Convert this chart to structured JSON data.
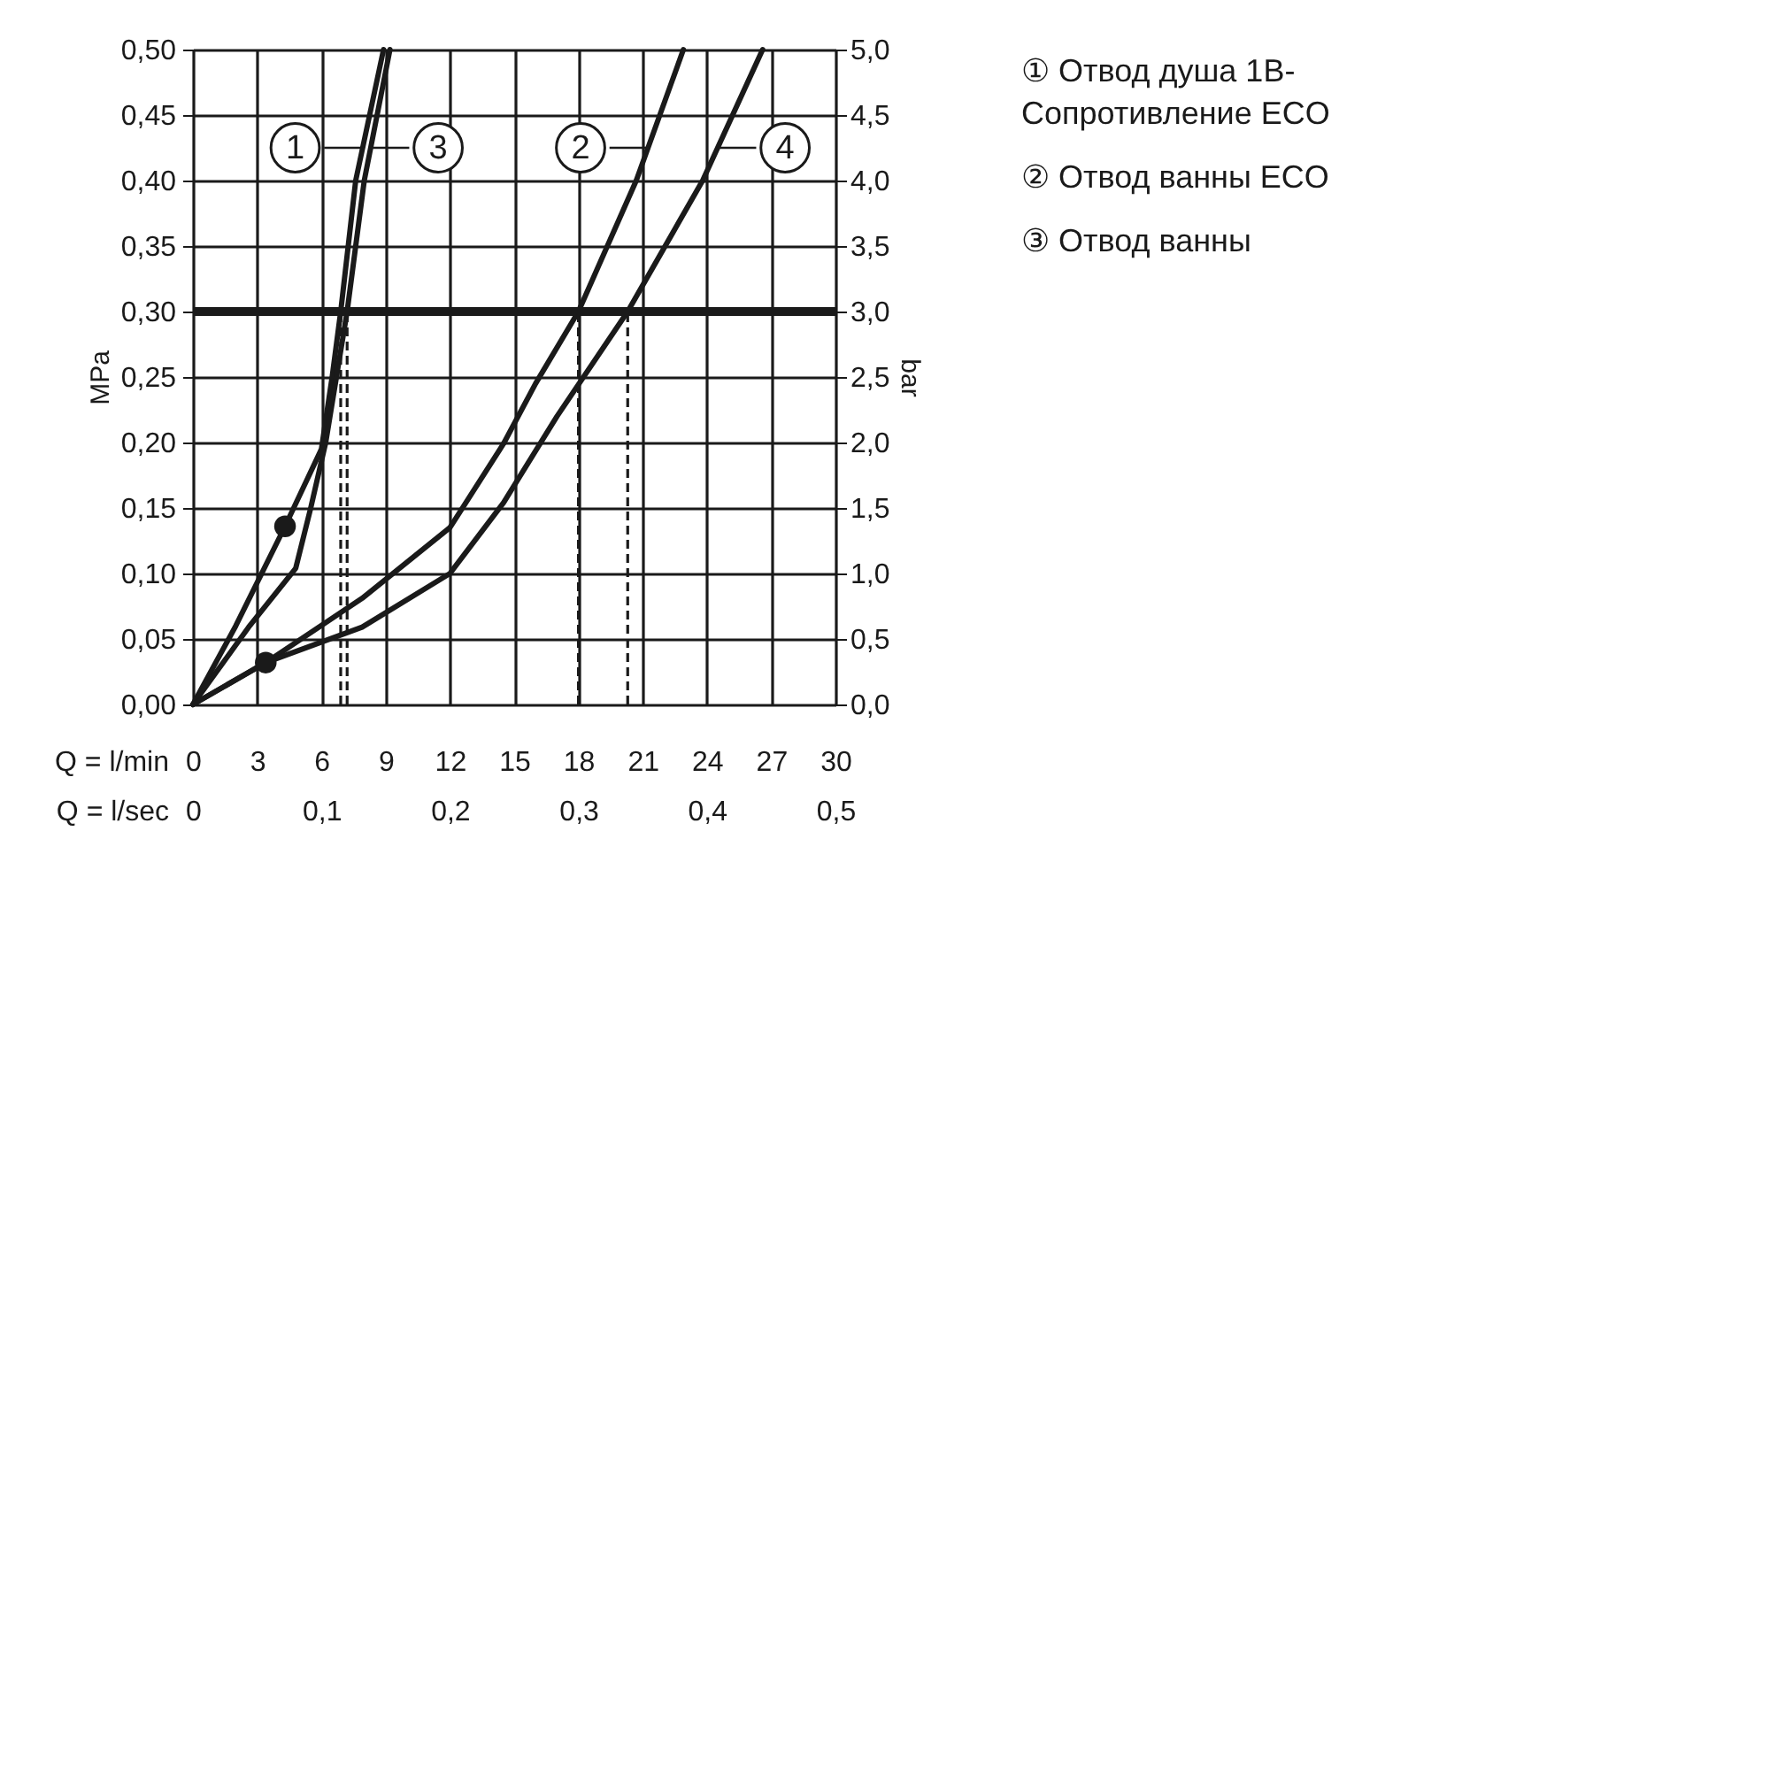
{
  "chart_data": {
    "type": "line",
    "xlabel": "Q = l/min",
    "x2label": "Q = l/sec",
    "ylabel": "MPa",
    "y2label": "bar",
    "xlim": [
      0,
      30
    ],
    "xticks": [
      0,
      3,
      6,
      9,
      12,
      15,
      18,
      21,
      24,
      27,
      30
    ],
    "x2lim": [
      0,
      0.5
    ],
    "x2ticks": [
      {
        "value": 0,
        "label": "0"
      },
      {
        "value": 0.1,
        "label": "0,1"
      },
      {
        "value": 0.2,
        "label": "0,2"
      },
      {
        "value": 0.3,
        "label": "0,3"
      },
      {
        "value": 0.4,
        "label": "0,4"
      },
      {
        "value": 0.5,
        "label": "0,5"
      }
    ],
    "ylim": [
      0,
      0.5
    ],
    "yticks": [
      {
        "value": 0,
        "label": "0,00"
      },
      {
        "value": 0.05,
        "label": "0,05"
      },
      {
        "value": 0.1,
        "label": "0,10"
      },
      {
        "value": 0.15,
        "label": "0,15"
      },
      {
        "value": 0.2,
        "label": "0,20"
      },
      {
        "value": 0.25,
        "label": "0,25"
      },
      {
        "value": 0.3,
        "label": "0,30"
      },
      {
        "value": 0.35,
        "label": "0,35"
      },
      {
        "value": 0.4,
        "label": "0,40"
      },
      {
        "value": 0.45,
        "label": "0,45"
      },
      {
        "value": 0.5,
        "label": "0,50"
      }
    ],
    "y2lim": [
      0,
      5
    ],
    "y2ticks": [
      {
        "value": 0,
        "label": "0,0"
      },
      {
        "value": 0.5,
        "label": "0,5"
      },
      {
        "value": 1,
        "label": "1,0"
      },
      {
        "value": 1.5,
        "label": "1,5"
      },
      {
        "value": 2,
        "label": "2,0"
      },
      {
        "value": 2.5,
        "label": "2,5"
      },
      {
        "value": 3,
        "label": "3,0"
      },
      {
        "value": 3.5,
        "label": "3,5"
      },
      {
        "value": 4,
        "label": "4,0"
      },
      {
        "value": 4.5,
        "label": "4,5"
      },
      {
        "value": 5,
        "label": "5,0"
      }
    ],
    "grid": true,
    "legend": "top",
    "line_style": "solid",
    "marker": "none",
    "series": [
      {
        "name": "1",
        "color": "#1a1a1a",
        "x": [
          0,
          2,
          4.3,
          6.0,
          6.5,
          6.9,
          7.6,
          8.9
        ],
        "values": [
          0,
          0.06,
          0.136,
          0.195,
          0.25,
          0.3,
          0.4,
          0.5
        ]
      },
      {
        "name": "3",
        "color": "#1a1a1a",
        "x": [
          0,
          2.6,
          4.8,
          5.5,
          6.2,
          6.7,
          7.2,
          8.0,
          9.2
        ],
        "values": [
          0,
          0.059,
          0.104,
          0.15,
          0.2,
          0.25,
          0.3,
          0.4,
          0.5
        ]
      },
      {
        "name": "2",
        "color": "#1a1a1a",
        "x": [
          0,
          3.4,
          7.9,
          12,
          14.5,
          16,
          18,
          20.7,
          22.9
        ],
        "values": [
          0,
          0.032,
          0.081,
          0.135,
          0.199,
          0.245,
          0.3,
          0.4,
          0.5
        ]
      },
      {
        "name": "4",
        "color": "#1a1a1a",
        "x": [
          0,
          3.4,
          7.9,
          12,
          14.5,
          17,
          20.3,
          23.8,
          26.6
        ],
        "values": [
          0,
          0.032,
          0.059,
          0.1,
          0.154,
          0.22,
          0.3,
          0.4,
          0.5
        ]
      },
      {
        "type": "scatter",
        "marker": "circle",
        "color": "#1a1a1a",
        "x": [
          4.3,
          3.4
        ],
        "values": [
          0.136,
          0.032
        ]
      }
    ],
    "ref_lines": [
      {
        "axis": "y",
        "value": 0.3,
        "color": "#1a1a1a"
      },
      {
        "axis": "x",
        "value": 6.9,
        "line_style": "dashed",
        "color": "#1a1a1a"
      },
      {
        "axis": "x",
        "value": 7.2,
        "line_style": "dashed",
        "color": "#1a1a1a"
      },
      {
        "axis": "x",
        "value": 18,
        "line_style": "dashed",
        "color": "#1a1a1a"
      },
      {
        "axis": "x",
        "value": 20.3,
        "line_style": "dashed",
        "color": "#1a1a1a"
      }
    ],
    "annotations": [
      "① Отвод душа 1B-\nСопротивление  ECO",
      "② Отвод ванны ECO",
      "③ Отвод ванны"
    ]
  }
}
